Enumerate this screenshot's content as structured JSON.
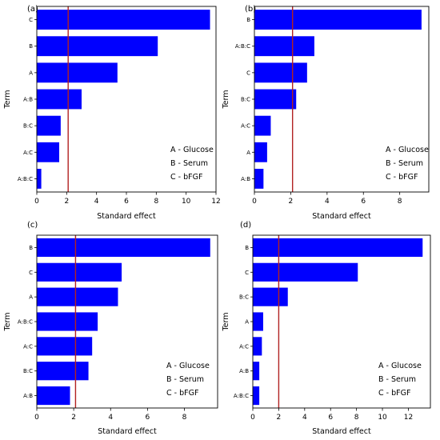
{
  "legend_lines": [
    "A - Glucose",
    "B - Serum",
    "C - bFGF"
  ],
  "chart_data": [
    {
      "type": "bar",
      "orientation": "horizontal",
      "panel_label": "(a)",
      "xlabel": "Standard effect",
      "ylabel": "Term",
      "categories": [
        "C",
        "B",
        "A",
        "A:B",
        "B:C",
        "A:C",
        "A:B:C"
      ],
      "values": [
        11.6,
        8.1,
        5.4,
        3.0,
        1.6,
        1.5,
        0.3
      ],
      "xlim": [
        0,
        12
      ],
      "xticks": [
        0,
        2,
        4,
        6,
        8,
        10,
        12
      ],
      "reference_line": 2.1,
      "bar_color": "#0000ff",
      "line_color": "#b22222",
      "legend_position": "bottom-right"
    },
    {
      "type": "bar",
      "orientation": "horizontal",
      "panel_label": "(b)",
      "xlabel": "Standard effect",
      "ylabel": "Term",
      "categories": [
        "B",
        "A:B:C",
        "C",
        "B:C",
        "A:C",
        "A",
        "A:B"
      ],
      "values": [
        9.2,
        3.3,
        2.9,
        2.3,
        0.9,
        0.7,
        0.5
      ],
      "xlim": [
        0,
        9.6
      ],
      "xticks": [
        0,
        2,
        4,
        6,
        8
      ],
      "reference_line": 2.1,
      "bar_color": "#0000ff",
      "line_color": "#b22222",
      "legend_position": "bottom-right"
    },
    {
      "type": "bar",
      "orientation": "horizontal",
      "panel_label": "(c)",
      "xlabel": "Standard effect",
      "ylabel": "Term",
      "categories": [
        "B",
        "C",
        "A",
        "A:B:C",
        "A:C",
        "B:C",
        "A:B"
      ],
      "values": [
        9.4,
        4.6,
        4.4,
        3.3,
        3.0,
        2.8,
        1.8
      ],
      "xlim": [
        0,
        9.8
      ],
      "xticks": [
        0,
        2,
        4,
        6,
        8
      ],
      "reference_line": 2.1,
      "bar_color": "#0000ff",
      "line_color": "#b22222",
      "legend_position": "bottom-right"
    },
    {
      "type": "bar",
      "orientation": "horizontal",
      "panel_label": "(d)",
      "xlabel": "Standard effect",
      "ylabel": "Term",
      "categories": [
        "B",
        "C",
        "B:C",
        "A",
        "A:C",
        "A:B",
        "A:B:C"
      ],
      "values": [
        13.1,
        8.1,
        2.7,
        0.8,
        0.7,
        0.5,
        0.5
      ],
      "xlim": [
        0,
        13.7
      ],
      "xticks": [
        0,
        2,
        4,
        6,
        8,
        10,
        12
      ],
      "reference_line": 2.0,
      "bar_color": "#0000ff",
      "line_color": "#b22222",
      "legend_position": "bottom-right"
    }
  ]
}
